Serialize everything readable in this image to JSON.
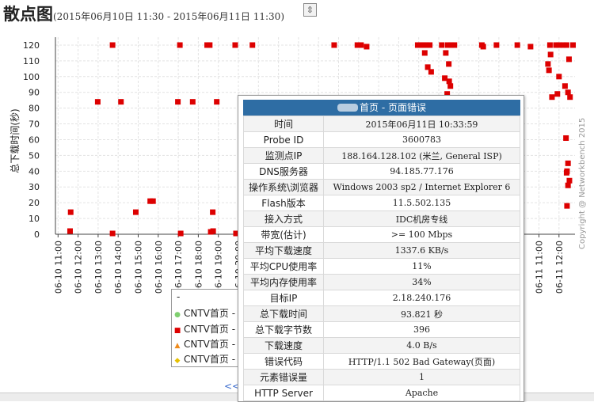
{
  "header": {
    "title": "散点图",
    "range": "(2015年06月10日 11:30 - 2015年06月11日 11:30)",
    "expand_glyph": "⇳"
  },
  "copyright": "Copyright @ Networkbench 2015",
  "legend": {
    "dash": "-",
    "items": [
      {
        "label": "CNTV首页 - 正常",
        "color": "#7fcf6f",
        "marker": "●"
      },
      {
        "label": "CNTV首页 - 页面错误",
        "color": "#dd0000",
        "marker": "■"
      },
      {
        "label": "CNTV首页 - 内容错误",
        "color": "#f08b1c",
        "marker": "▲"
      },
      {
        "label": "CNTV首页 - 错误",
        "color": "#e6c000",
        "marker": "◆"
      }
    ]
  },
  "pager": {
    "prev_label": "<<首"
  },
  "tooltip": {
    "title": "首页 - 页面错误",
    "rows": [
      {
        "key": "时间",
        "value": "2015年06月11日 10:33:59"
      },
      {
        "key": "Probe ID",
        "value": "3600783"
      },
      {
        "key": "监测点IP",
        "value": "188.164.128.102 (米兰, General ISP)"
      },
      {
        "key": "DNS服务器",
        "value": "94.185.77.176"
      },
      {
        "key": "操作系统\\浏览器",
        "value": "Windows 2003 sp2 / Internet Explorer 6"
      },
      {
        "key": "Flash版本",
        "value": "11.5.502.135"
      },
      {
        "key": "接入方式",
        "value": "IDC机房专线"
      },
      {
        "key": "带宽(估计)",
        "value": ">= 100 Mbps"
      },
      {
        "key": "平均下载速度",
        "value": "1337.6 KB/s"
      },
      {
        "key": "平均CPU使用率",
        "value": "11%"
      },
      {
        "key": "平均内存使用率",
        "value": "34%"
      },
      {
        "key": "目标IP",
        "value": "2.18.240.176"
      },
      {
        "key": "总下载时间",
        "value": "93.821 秒"
      },
      {
        "key": "总下载字节数",
        "value": "396"
      },
      {
        "key": "下载速度",
        "value": "4.0 B/s"
      },
      {
        "key": "错误代码",
        "value": "HTTP/1.1 502 Bad Gateway(页面)"
      },
      {
        "key": "元素错误量",
        "value": "1"
      },
      {
        "key": "HTTP Server",
        "value": "Apache"
      }
    ]
  },
  "chart_data": {
    "type": "scatter",
    "title": "散点图",
    "ylabel": "总下载时间(秒)",
    "xlabel": "",
    "ylim": [
      0,
      125
    ],
    "grid": true,
    "y_ticks": [
      0,
      10,
      20,
      30,
      40,
      50,
      60,
      70,
      80,
      90,
      100,
      110,
      120
    ],
    "x_ticks": [
      "06-10 11:00",
      "06-10 12:00",
      "06-10 13:00",
      "06-10 14:00",
      "06-10 15:00",
      "06-10 16:00",
      "06-10 17:00",
      "06-10 18:00",
      "06-10 19:00",
      "06-10 20:00",
      "06-10 21:00",
      "06-10 22:00",
      "06-10 23:00",
      "06-11 00:00",
      "06-11 01:00",
      "06-11 02:00",
      "06-11 03:00",
      "06-11 04:00",
      "06-11 05:00",
      "06-11 06:00",
      "06-11 07:00",
      "06-11 08:00",
      "06-11 09:00",
      "06-11 10:00",
      "06-11 11:00",
      "06-11 12:00"
    ],
    "xlim_hours": [
      0,
      25
    ],
    "series": [
      {
        "name": "CNTV首页 - 页面错误",
        "color": "#dd0000",
        "points": [
          {
            "x": 0.6,
            "y": 2
          },
          {
            "x": 0.63,
            "y": 14
          },
          {
            "x": 1.98,
            "y": 84
          },
          {
            "x": 2.72,
            "y": 120
          },
          {
            "x": 2.72,
            "y": 0.5
          },
          {
            "x": 3.14,
            "y": 84
          },
          {
            "x": 3.88,
            "y": 14
          },
          {
            "x": 4.6,
            "y": 21
          },
          {
            "x": 4.74,
            "y": 21
          },
          {
            "x": 5.98,
            "y": 84
          },
          {
            "x": 6.08,
            "y": 120
          },
          {
            "x": 6.12,
            "y": 0.5
          },
          {
            "x": 6.72,
            "y": 84
          },
          {
            "x": 7.44,
            "y": 120
          },
          {
            "x": 7.57,
            "y": 120
          },
          {
            "x": 7.62,
            "y": 1.5
          },
          {
            "x": 7.72,
            "y": 14
          },
          {
            "x": 7.74,
            "y": 2
          },
          {
            "x": 7.92,
            "y": 84
          },
          {
            "x": 8.84,
            "y": 120
          },
          {
            "x": 8.88,
            "y": 0.5
          },
          {
            "x": 9.14,
            "y": 84
          },
          {
            "x": 9.7,
            "y": 120
          },
          {
            "x": 10.12,
            "y": 21
          },
          {
            "x": 10.22,
            "y": 14
          },
          {
            "x": 13.78,
            "y": 120
          },
          {
            "x": 14.94,
            "y": 120
          },
          {
            "x": 15.12,
            "y": 120
          },
          {
            "x": 15.4,
            "y": 119
          },
          {
            "x": 17.95,
            "y": 120
          },
          {
            "x": 18.1,
            "y": 120
          },
          {
            "x": 18.25,
            "y": 120
          },
          {
            "x": 18.4,
            "y": 120
          },
          {
            "x": 18.55,
            "y": 120
          },
          {
            "x": 18.3,
            "y": 115
          },
          {
            "x": 18.45,
            "y": 106
          },
          {
            "x": 18.62,
            "y": 103
          },
          {
            "x": 19.15,
            "y": 120
          },
          {
            "x": 19.35,
            "y": 115
          },
          {
            "x": 19.45,
            "y": 120
          },
          {
            "x": 19.62,
            "y": 120
          },
          {
            "x": 19.78,
            "y": 120
          },
          {
            "x": 19.5,
            "y": 108
          },
          {
            "x": 19.3,
            "y": 99
          },
          {
            "x": 19.52,
            "y": 97
          },
          {
            "x": 19.58,
            "y": 94
          },
          {
            "x": 19.42,
            "y": 89
          },
          {
            "x": 19.55,
            "y": 84
          },
          {
            "x": 19.65,
            "y": 81
          },
          {
            "x": 21.15,
            "y": 120
          },
          {
            "x": 21.22,
            "y": 119
          },
          {
            "x": 21.88,
            "y": 120
          },
          {
            "x": 22.92,
            "y": 120
          },
          {
            "x": 23.58,
            "y": 119
          },
          {
            "x": 24.55,
            "y": 120
          },
          {
            "x": 24.85,
            "y": 120
          },
          {
            "x": 25.0,
            "y": 120
          },
          {
            "x": 25.22,
            "y": 120
          },
          {
            "x": 25.38,
            "y": 120
          },
          {
            "x": 25.7,
            "y": 120
          },
          {
            "x": 26.15,
            "y": 120
          },
          {
            "x": 26.45,
            "y": 120
          },
          {
            "x": 26.6,
            "y": 120
          },
          {
            "x": 24.58,
            "y": 114
          },
          {
            "x": 24.45,
            "y": 108
          },
          {
            "x": 24.5,
            "y": 104
          },
          {
            "x": 25.0,
            "y": 100
          },
          {
            "x": 25.3,
            "y": 94
          },
          {
            "x": 25.45,
            "y": 90
          },
          {
            "x": 25.55,
            "y": 87
          },
          {
            "x": 24.92,
            "y": 89
          },
          {
            "x": 24.65,
            "y": 87
          },
          {
            "x": 25.5,
            "y": 111
          },
          {
            "x": 25.9,
            "y": 68
          },
          {
            "x": 25.35,
            "y": 61
          },
          {
            "x": 25.45,
            "y": 45
          },
          {
            "x": 25.4,
            "y": 40
          },
          {
            "x": 25.38,
            "y": 39
          },
          {
            "x": 25.52,
            "y": 34
          },
          {
            "x": 25.45,
            "y": 31
          },
          {
            "x": 25.4,
            "y": 18
          },
          {
            "x": 25.82,
            "y": 15
          },
          {
            "x": 25.92,
            "y": 0.5
          },
          {
            "x": 26.08,
            "y": 0.5
          },
          {
            "x": 26.5,
            "y": 52
          },
          {
            "x": 26.25,
            "y": 106
          },
          {
            "x": 26.48,
            "y": 101
          }
        ]
      }
    ]
  }
}
